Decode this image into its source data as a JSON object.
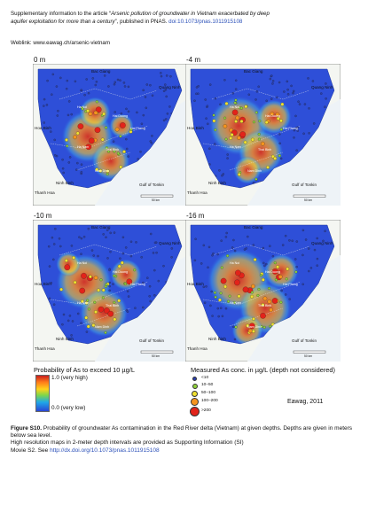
{
  "header": {
    "line1_prefix": "Supplementary information to the article “",
    "line1_title": "Arsenic pollution of groundwater in Vietnam exacerbated by deep",
    "line2_title": "aquifer exploitation for more than a century",
    "line2_mid": "”, published in PNAS. ",
    "doi": "doi:10.1073/pnas.1011915108",
    "weblink": "Weblink: www.eawag.ch/arsenic-vietnam"
  },
  "panels": [
    {
      "depth": "0 m"
    },
    {
      "depth": "-4 m"
    },
    {
      "depth": "-10 m"
    },
    {
      "depth": "-16 m"
    }
  ],
  "map_labels": {
    "bac_giang": "Bac Giang",
    "quang_ninh": "Quang Ninh",
    "hoa_binh": "Hoa Binh",
    "ninh_binh": "Ninh Binh",
    "thanh_hoa": "Thanh Hoa",
    "gulf": "Gulf of Tonkin",
    "ha_noi": "Ha Noi",
    "hai_duong": "Hai Duong",
    "thai_binh": "Thai Binh",
    "nam_dinh": "Nam Dinh",
    "hai_phong": "Hai Phong",
    "ha_nam": "Ha Nam",
    "scale": "50 km"
  },
  "legend_prob": {
    "title": "Probability of As to exceed 10 µg/L",
    "high": "1.0  (very high)",
    "low": "0.0  (very low)",
    "colors": [
      "#c81e1e",
      "#ff7a1a",
      "#ffd21a",
      "#7ed64a",
      "#1fa8e8",
      "#2a45d6"
    ]
  },
  "legend_conc": {
    "title": "Measured As conc. in µg/L (depth not considered)",
    "items": [
      {
        "label": "<10",
        "color": "#2a3fb0"
      },
      {
        "label": "10–50",
        "color": "#8fd13a"
      },
      {
        "label": "50–100",
        "color": "#f0e030"
      },
      {
        "label": "100–200",
        "color": "#f5941e"
      },
      {
        "label": ">200",
        "color": "#e2231a"
      }
    ]
  },
  "credit": "Eawag, 2011",
  "caption": {
    "fig": "Figure S10.",
    "text1": " Probability of groundwater As contamination in the Red River delta (Vietnam) at given depths. Depths are given in meters below sea level.",
    "text2": "High resolution maps in 2-meter depth intervals are provided as Supporting Information (SI)",
    "text3_prefix": "Movie S2. See ",
    "link": "http://dx.doi.org/10.1073/pnas.1011915108"
  }
}
